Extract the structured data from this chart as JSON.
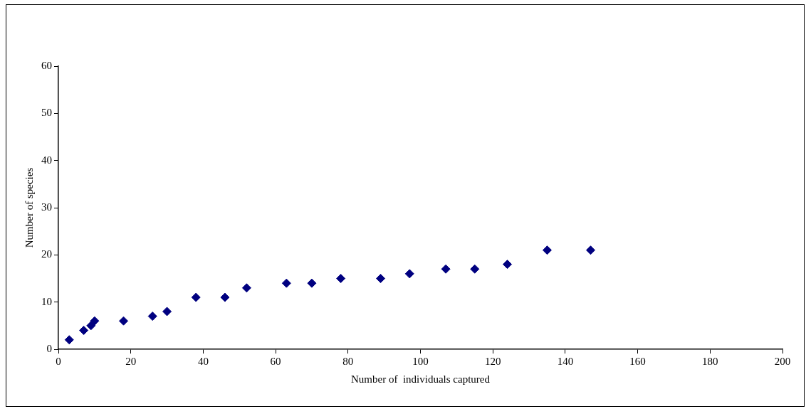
{
  "chart_data": {
    "type": "scatter",
    "xlabel": "Number of  individuals captured",
    "ylabel": "Number of species",
    "x": [
      3,
      7,
      9,
      10,
      18,
      26,
      30,
      38,
      46,
      52,
      63,
      70,
      78,
      89,
      97,
      107,
      115,
      124,
      135,
      147
    ],
    "values": [
      2,
      4,
      5,
      6,
      6,
      7,
      8,
      11,
      11,
      13,
      14,
      14,
      15,
      15,
      16,
      17,
      17,
      18,
      21,
      21
    ],
    "color": "#000080",
    "marker": "diamond",
    "xlim": [
      0,
      200
    ],
    "xticks": [
      0,
      20,
      40,
      60,
      80,
      100,
      120,
      140,
      160,
      180,
      200
    ],
    "ylim": [
      0,
      60
    ],
    "yticks": [
      0,
      10,
      20,
      30,
      40,
      50,
      60
    ],
    "grid": false,
    "legend": false
  }
}
